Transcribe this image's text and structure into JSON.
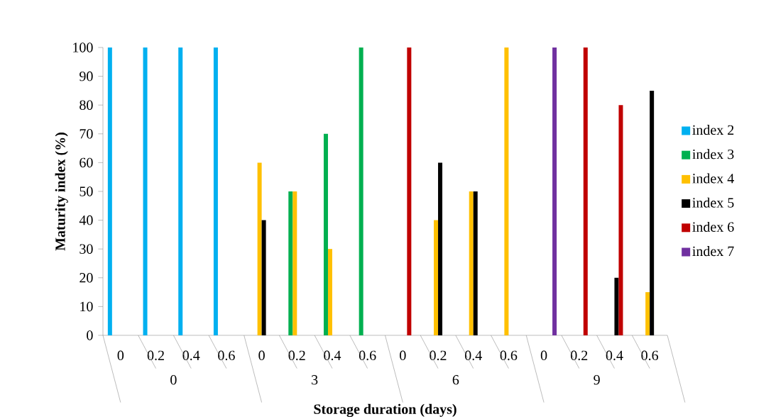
{
  "chart_data": {
    "type": "bar",
    "xlabel": "Storage duration (days)",
    "ylabel": "Maturity index (%)",
    "categories": [
      "0",
      "0.2",
      "0.4",
      "0.6",
      "0",
      "0.2",
      "0.4",
      "0.6",
      "0",
      "0.2",
      "0.4",
      "0.6",
      "0",
      "0.2",
      "0.4",
      "0.6"
    ],
    "annotations": [
      "0",
      "3",
      "6",
      "9"
    ],
    "series": [
      {
        "name": "index 2",
        "color": "#00b0f0",
        "values": [
          100,
          100,
          100,
          100,
          null,
          null,
          null,
          null,
          null,
          null,
          null,
          null,
          null,
          null,
          null,
          null
        ]
      },
      {
        "name": "index 3",
        "color": "#00b050",
        "values": [
          null,
          null,
          null,
          null,
          null,
          50,
          70,
          100,
          null,
          null,
          null,
          null,
          null,
          null,
          null,
          null
        ]
      },
      {
        "name": "index 4",
        "color": "#ffc000",
        "values": [
          null,
          null,
          null,
          null,
          60,
          50,
          30,
          null,
          null,
          40,
          50,
          100,
          null,
          null,
          null,
          15
        ]
      },
      {
        "name": "index 5",
        "color": "#000000",
        "values": [
          null,
          null,
          null,
          null,
          40,
          null,
          null,
          null,
          null,
          60,
          50,
          null,
          null,
          null,
          20,
          85
        ]
      },
      {
        "name": "index 6",
        "color": "#c00000",
        "values": [
          null,
          null,
          null,
          null,
          null,
          null,
          null,
          null,
          100,
          null,
          null,
          null,
          null,
          100,
          80,
          null
        ]
      },
      {
        "name": "index 7",
        "color": "#7030a0",
        "values": [
          null,
          null,
          null,
          null,
          null,
          null,
          null,
          null,
          null,
          null,
          null,
          null,
          100,
          null,
          null,
          null
        ]
      }
    ],
    "ylim": [
      0,
      100
    ],
    "yticks": [
      0,
      10,
      20,
      30,
      40,
      50,
      60,
      70,
      80,
      90,
      100
    ],
    "grid": false,
    "legend": "right"
  }
}
